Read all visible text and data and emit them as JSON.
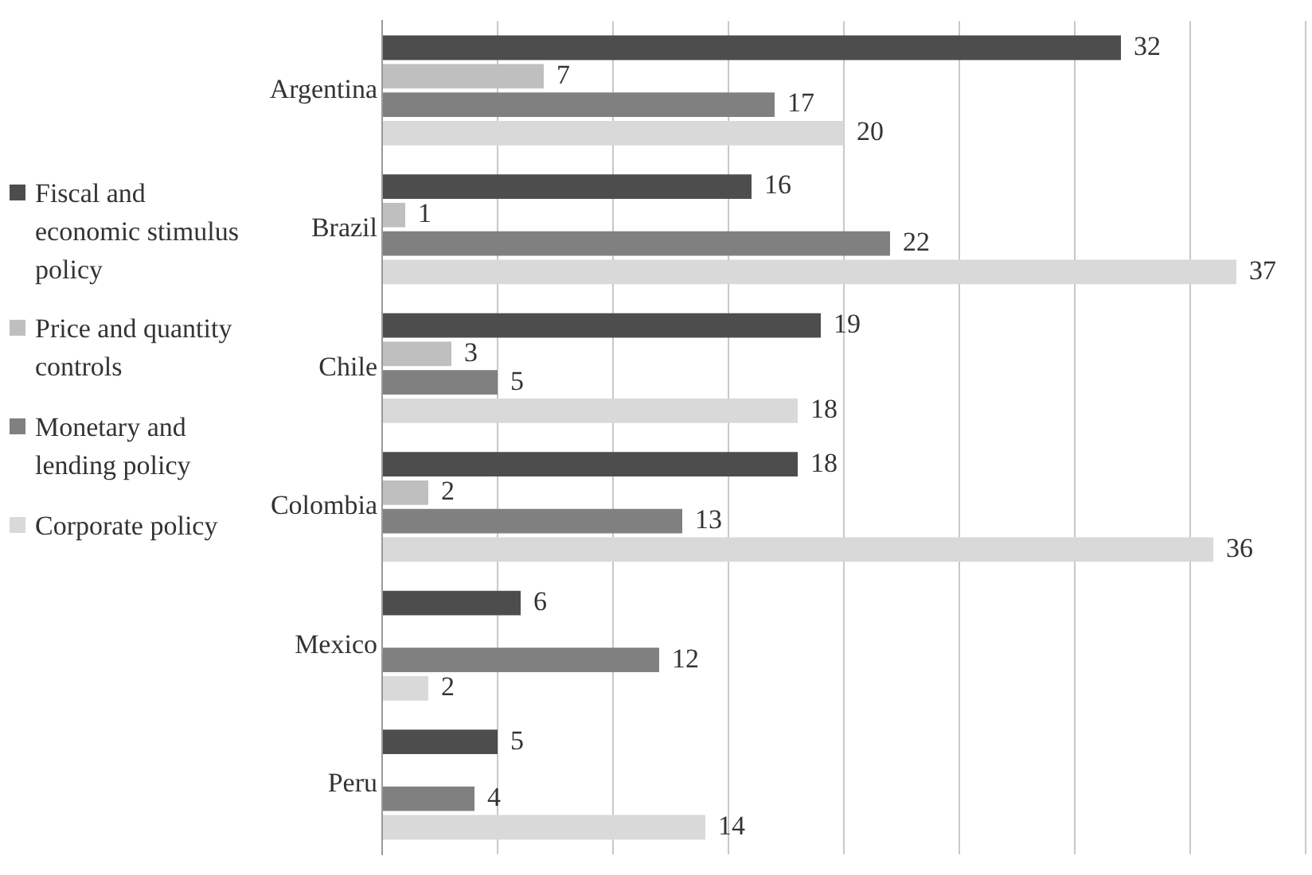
{
  "chart_data": {
    "type": "bar",
    "orientation": "horizontal",
    "categories": [
      "Argentina",
      "Brazil",
      "Chile",
      "Colombia",
      "Mexico",
      "Peru"
    ],
    "series": [
      {
        "name": "Fiscal and economic stimulus policy",
        "color": "#4d4d4d",
        "values": [
          32,
          16,
          19,
          18,
          6,
          5
        ]
      },
      {
        "name": "Price and quantity controls",
        "color": "#bfbfbf",
        "values": [
          7,
          1,
          3,
          2,
          null,
          null
        ]
      },
      {
        "name": "Monetary and lending policy",
        "color": "#808080",
        "values": [
          17,
          22,
          5,
          13,
          12,
          4
        ]
      },
      {
        "name": "Corporate policy",
        "color": "#d9d9d9",
        "values": [
          20,
          37,
          18,
          36,
          2,
          14
        ]
      }
    ],
    "xlim": [
      0,
      40
    ],
    "xticks": [
      {
        "value": 0,
        "label": null
      },
      {
        "value": 5,
        "label": null
      },
      {
        "value": 10,
        "label": null
      },
      {
        "value": 15,
        "label": null
      },
      {
        "value": 20,
        "label": null
      },
      {
        "value": 25,
        "label": null
      },
      {
        "value": 30,
        "label": null
      },
      {
        "value": 35,
        "label": null
      },
      {
        "value": 40,
        "label": null
      }
    ],
    "tick_labels": "y",
    "grid": "x",
    "legend": "left",
    "data_labels": true
  }
}
